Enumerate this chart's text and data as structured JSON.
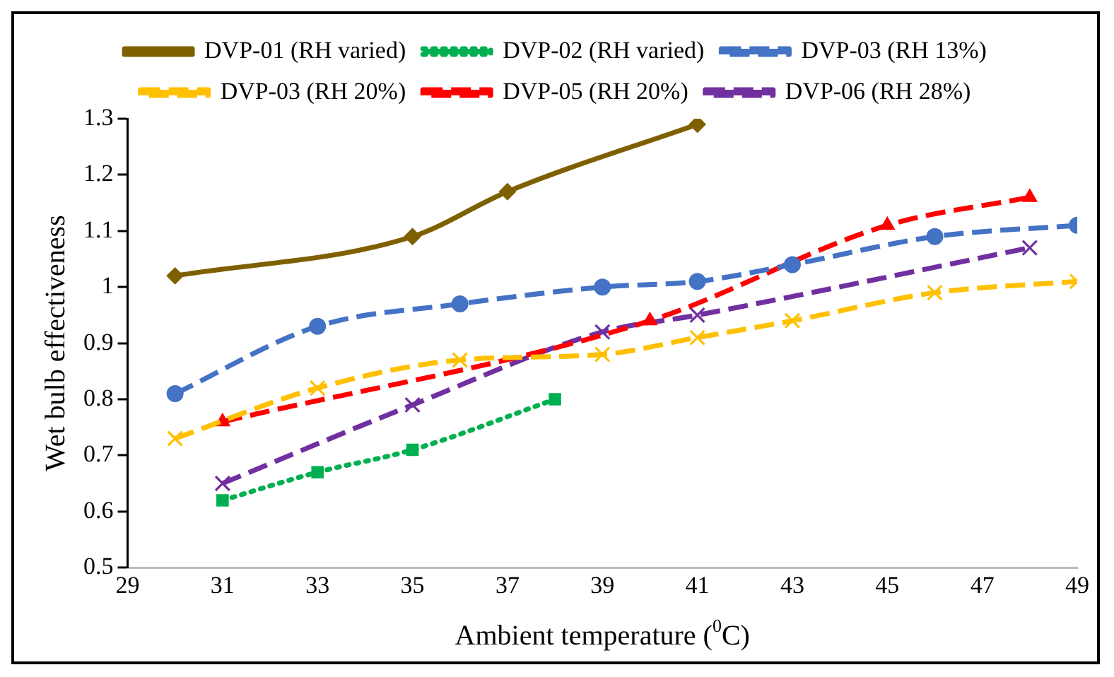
{
  "chart_data": {
    "type": "line",
    "xlabel": "Ambient temperature ($^{0}$C)",
    "ylabel": "Wet bulb effectiveness",
    "xlim": [
      29,
      49
    ],
    "xticks": [
      29,
      31,
      33,
      35,
      37,
      39,
      41,
      43,
      45,
      47,
      49
    ],
    "ylim": [
      0.5,
      1.3
    ],
    "yticks": [
      0.5,
      0.6,
      0.7,
      0.8,
      0.9,
      1,
      1.1,
      1.2,
      1.3
    ],
    "grid": false,
    "legend": "top",
    "series": [
      {
        "name": "DVP-01 (RH varied)",
        "color": "#7f6000",
        "marker": "diamond",
        "line_style": "solid",
        "x": [
          30,
          35,
          37,
          41
        ],
        "values": [
          1.02,
          1.09,
          1.17,
          1.29
        ]
      },
      {
        "name": "DVP-02 (RH varied)",
        "color": "#00b050",
        "marker": "square",
        "line_style": "dotted",
        "x": [
          31,
          33,
          35,
          38
        ],
        "values": [
          0.62,
          0.67,
          0.71,
          0.8
        ]
      },
      {
        "name": "DVP-03 (RH 13%)",
        "color": "#4472c4",
        "marker": "circle",
        "line_style": "dashed",
        "x": [
          30,
          33,
          36,
          39,
          41,
          43,
          46,
          49
        ],
        "values": [
          0.81,
          0.93,
          0.97,
          1.0,
          1.01,
          1.04,
          1.09,
          1.11
        ]
      },
      {
        "name": "DVP-03 (RH 20%)",
        "color": "#ffc000",
        "marker": "cross",
        "line_style": "dashed",
        "x": [
          30,
          33,
          36,
          39,
          41,
          43,
          46,
          49
        ],
        "values": [
          0.73,
          0.82,
          0.87,
          0.88,
          0.91,
          0.94,
          0.99,
          1.01
        ]
      },
      {
        "name": "DVP-05 (RH 20%)",
        "color": "#ff0000",
        "marker": "triangle",
        "line_style": "dashed",
        "x": [
          31,
          40,
          45,
          48
        ],
        "values": [
          0.76,
          0.94,
          1.11,
          1.16
        ]
      },
      {
        "name": "DVP-06 (RH 28%)",
        "color": "#7030a0",
        "marker": "cross",
        "line_style": "dashed",
        "x": [
          31,
          35,
          39,
          41,
          48
        ],
        "values": [
          0.65,
          0.79,
          0.92,
          0.95,
          1.07
        ]
      }
    ]
  }
}
